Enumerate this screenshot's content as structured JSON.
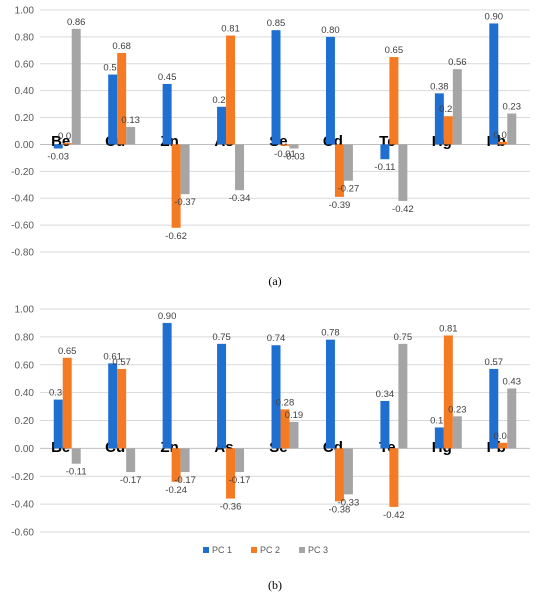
{
  "colors": {
    "pc1": "#1f6fd1",
    "pc2": "#f47a24",
    "pc3": "#a5a5a5",
    "grid": "#d9d9d9",
    "axis": "#bfbfbf"
  },
  "chart_data": [
    {
      "type": "bar",
      "caption": "(a)",
      "categories": [
        "Be",
        "Cu",
        "Zn",
        "As",
        "Se",
        "Cd",
        "Te",
        "Hg",
        "Pb"
      ],
      "series": [
        {
          "values": [
            -0.03,
            0.52,
            0.45,
            0.28,
            0.85,
            0.8,
            -0.11,
            0.38,
            0.9
          ]
        },
        {
          "values": [
            0.01,
            0.68,
            -0.62,
            0.81,
            -0.01,
            -0.39,
            0.65,
            0.21,
            0.02
          ]
        },
        {
          "values": [
            0.86,
            0.13,
            -0.37,
            -0.34,
            -0.03,
            -0.27,
            -0.42,
            0.56,
            0.23
          ]
        }
      ],
      "ylim": [
        -0.8,
        1.0
      ],
      "yticks": [
        "1.00",
        "0.80",
        "0.60",
        "0.40",
        "0.20",
        "0.00",
        "-0.20",
        "-0.40",
        "-0.60",
        "-0.80"
      ],
      "grid": true,
      "legend": "none"
    },
    {
      "type": "bar",
      "caption": "(b)",
      "categories": [
        "Be",
        "Cu",
        "Zn",
        "As",
        "Se",
        "Cd",
        "Te",
        "Hg",
        "Pb"
      ],
      "series": [
        {
          "name": "PC 1",
          "values": [
            0.35,
            0.61,
            0.9,
            0.75,
            0.74,
            0.78,
            0.34,
            0.15,
            0.57
          ]
        },
        {
          "name": "PC 2",
          "values": [
            0.65,
            0.57,
            -0.24,
            -0.36,
            0.28,
            -0.38,
            -0.42,
            0.81,
            0.04
          ]
        },
        {
          "name": "PC 3",
          "values": [
            -0.11,
            -0.17,
            -0.17,
            -0.17,
            0.19,
            -0.33,
            0.75,
            0.23,
            0.43
          ]
        }
      ],
      "ylim": [
        -0.6,
        1.0
      ],
      "yticks": [
        "1.00",
        "0.80",
        "0.60",
        "0.40",
        "0.20",
        "0.00",
        "-0.20",
        "-0.40",
        "-0.60"
      ],
      "grid": true,
      "legend": "bottom"
    }
  ]
}
